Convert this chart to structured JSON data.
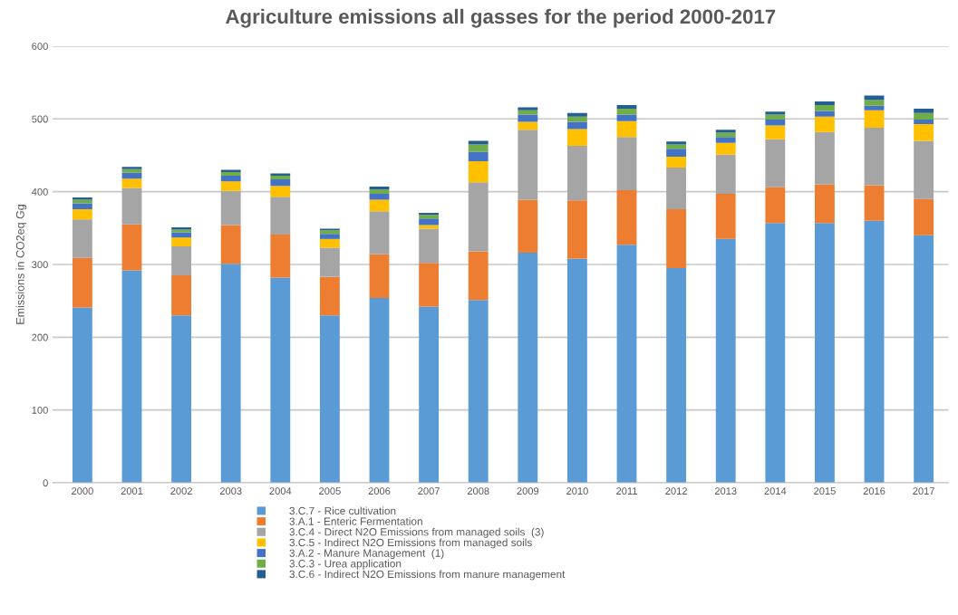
{
  "chart_data": {
    "type": "bar",
    "stacked": true,
    "title": "Agriculture emissions all gasses for the period 2000-2017",
    "ylabel": "Emissions in CO2eq Gg",
    "categories": [
      "2000",
      "2001",
      "2002",
      "2003",
      "2004",
      "2005",
      "2006",
      "2007",
      "2008",
      "2009",
      "2010",
      "2011",
      "2012",
      "2013",
      "2014",
      "2015",
      "2016",
      "2017"
    ],
    "ylim": [
      0,
      600
    ],
    "yticks": [
      0,
      100,
      200,
      300,
      400,
      500,
      600
    ],
    "grid": "y",
    "legend": "bottom",
    "series": [
      {
        "name": "3.C.7 - Rice cultivation",
        "color": "#5b9bd5",
        "values": [
          241,
          292,
          230,
          301,
          282,
          230,
          254,
          242,
          251,
          316,
          308,
          327,
          295,
          335,
          357,
          357,
          360,
          340
        ]
      },
      {
        "name": "3.A.1 - Enteric Fermentation",
        "color": "#ed7d31",
        "values": [
          68,
          63,
          55,
          53,
          59,
          53,
          60,
          60,
          67,
          73,
          80,
          75,
          81,
          62,
          49,
          53,
          49,
          50
        ]
      },
      {
        "name": "3.C.4 - Direct N2O Emissions from managed soils  (3)",
        "color": "#a5a5a5",
        "values": [
          53,
          50,
          40,
          47,
          52,
          40,
          59,
          47,
          95,
          96,
          75,
          73,
          57,
          54,
          66,
          72,
          79,
          80
        ]
      },
      {
        "name": "3.C.5 - Indirect N2O Emissions from managed soils",
        "color": "#ffc000",
        "values": [
          14,
          13,
          12,
          13,
          15,
          12,
          16,
          5,
          29,
          11,
          23,
          22,
          15,
          16,
          19,
          21,
          24,
          23
        ]
      },
      {
        "name": "3.A.2 - Manure Management  (1)",
        "color": "#4472c4",
        "values": [
          8,
          8,
          7,
          8,
          9,
          7,
          8,
          9,
          13,
          10,
          10,
          9,
          11,
          8,
          8,
          8,
          6,
          6
        ]
      },
      {
        "name": "3.C.3 - Urea application",
        "color": "#70ad47",
        "values": [
          5,
          5,
          4,
          5,
          5,
          5,
          6,
          5,
          10,
          6,
          7,
          8,
          6,
          6,
          7,
          8,
          8,
          9
        ]
      },
      {
        "name": "3.C.6 - Indirect N2O Emissions from manure management",
        "color": "#255e91",
        "values": [
          3,
          3,
          3,
          3,
          3,
          2,
          4,
          3,
          5,
          4,
          5,
          5,
          4,
          4,
          4,
          5,
          6,
          6
        ]
      }
    ]
  }
}
